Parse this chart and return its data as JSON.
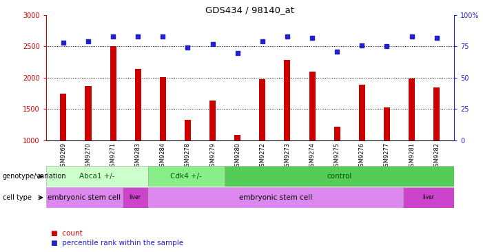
{
  "title": "GDS434 / 98140_at",
  "samples": [
    "GSM9269",
    "GSM9270",
    "GSM9271",
    "GSM9283",
    "GSM9284",
    "GSM9278",
    "GSM9279",
    "GSM9280",
    "GSM9272",
    "GSM9273",
    "GSM9274",
    "GSM9275",
    "GSM9276",
    "GSM9277",
    "GSM9281",
    "GSM9282"
  ],
  "counts": [
    1750,
    1870,
    2500,
    2140,
    2010,
    1330,
    1640,
    1085,
    1980,
    2280,
    2095,
    1220,
    1890,
    1530,
    1990,
    1840
  ],
  "percentiles": [
    78,
    79,
    83,
    83,
    83,
    74,
    77,
    70,
    79,
    83,
    82,
    71,
    76,
    75,
    83,
    82
  ],
  "bar_color": "#cc0000",
  "dot_color": "#2222cc",
  "ylim_left": [
    1000,
    3000
  ],
  "ylim_right": [
    0,
    100
  ],
  "yticks_left": [
    1000,
    1500,
    2000,
    2500,
    3000
  ],
  "yticks_right": [
    0,
    25,
    50,
    75,
    100
  ],
  "ytick_labels_right": [
    "0",
    "25",
    "50",
    "75",
    "100%"
  ],
  "dotted_line_y": [
    1500,
    2000,
    2500
  ],
  "genotype_groups": [
    {
      "label": "Abca1 +/-",
      "start": 0,
      "end": 4,
      "color": "#ccffcc"
    },
    {
      "label": "Cdk4 +/-",
      "start": 4,
      "end": 7,
      "color": "#88ee88"
    },
    {
      "label": "control",
      "start": 7,
      "end": 16,
      "color": "#55cc55"
    }
  ],
  "celltype_groups": [
    {
      "label": "embryonic stem cell",
      "start": 0,
      "end": 3,
      "color": "#dd88ee"
    },
    {
      "label": "liver",
      "start": 3,
      "end": 4,
      "color": "#cc44cc"
    },
    {
      "label": "embryonic stem cell",
      "start": 4,
      "end": 14,
      "color": "#dd88ee"
    },
    {
      "label": "liver",
      "start": 14,
      "end": 16,
      "color": "#cc44cc"
    }
  ],
  "genotype_label": "genotype/variation",
  "celltype_label": "cell type",
  "legend_count": "count",
  "legend_percentile": "percentile rank within the sample"
}
